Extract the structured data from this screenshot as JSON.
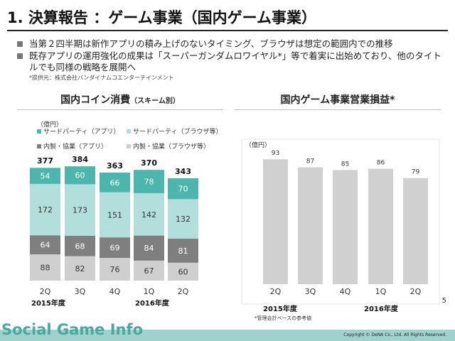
{
  "title": "1. 決算報告 ：ゲーム事業（国内ゲーム事業）",
  "bullets": [
    "当第２四半期は新作アプリの積み上げのないタイミング、ブラウザは想定の範囲内での推移",
    "既存アプリの運用強化の成果は「スーパーガンダムロワイヤル*」等で着実に出始めており、他のタイトルでも同様の戦略を展開へ"
  ],
  "note": "*提供元：株式会社バンダイナムコエンターテインメント",
  "left_title": "国内コイン消費",
  "left_subtitle": "（スキーム別）",
  "right_title": "国内ゲーム事業営業損益*",
  "footnote": "*管理会計ベースの参考値",
  "page_number": "5",
  "copyright": "Copyright © DeNA Co., Ltd. All Rights Reserved.",
  "watermark": "Social Game Info",
  "colors": {
    "teal": "#4db6ac",
    "lightteal": "#b2dfdb",
    "darkgray": "#7f7f7f",
    "lightgray": "#cfcfcf",
    "profitbar": "#d0d0d0"
  },
  "chart_data": [
    {
      "type": "bar",
      "stacked": true,
      "unit": "（億円）",
      "categories": [
        "2Q",
        "3Q",
        "4Q",
        "1Q",
        "2Q"
      ],
      "year_labels": [
        "2015年度",
        "2016年度"
      ],
      "series": [
        {
          "name": "内製・協業（ブラウザ等）",
          "color": "#cfcfcf",
          "values": [
            88,
            82,
            76,
            67,
            60
          ]
        },
        {
          "name": "内製・協業（アプリ）",
          "color": "#7f7f7f",
          "values": [
            64,
            68,
            69,
            84,
            81
          ]
        },
        {
          "name": "サードパーティ（ブラウザ等）",
          "color": "#b2dfdb",
          "values": [
            172,
            173,
            151,
            142,
            132
          ]
        },
        {
          "name": "サードパーティ（アプリ）",
          "color": "#4db6ac",
          "values": [
            54,
            60,
            66,
            78,
            70
          ]
        }
      ],
      "totals": [
        377,
        384,
        363,
        370,
        343
      ],
      "legend_order": [
        "サードパーティ（アプリ）",
        "サードパーティ（ブラウザ等）",
        "内製・協業（アプリ）",
        "内製・協業（ブラウザ等）"
      ]
    },
    {
      "type": "bar",
      "unit": "（億円）",
      "categories": [
        "2Q",
        "3Q",
        "4Q",
        "1Q",
        "2Q"
      ],
      "year_labels": [
        "2015年度",
        "2016年度"
      ],
      "values": [
        93,
        87,
        85,
        86,
        79
      ]
    }
  ]
}
